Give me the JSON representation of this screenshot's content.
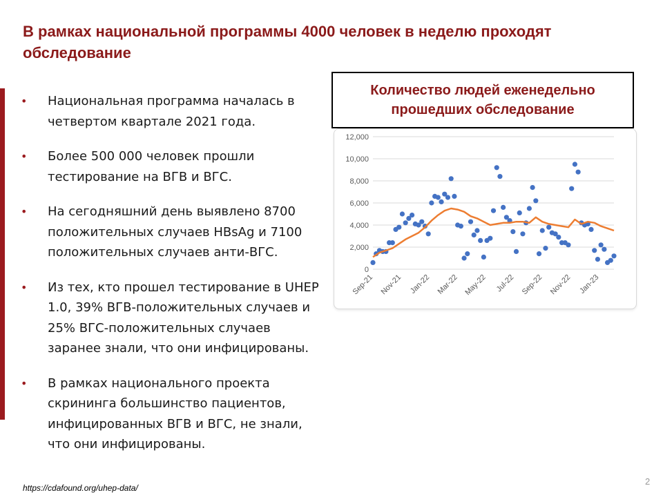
{
  "slide": {
    "title": "В рамках национальной программы 4000 человек в неделю проходят обследование",
    "bullets": [
      "Национальная программа началась в четвертом квартале 2021 года.",
      "Более 500 000 человек прошли тестирование на ВГВ и ВГС.",
      "На сегодняшний день выявлено 8700 положительных случаев HBsAg и 7100 положительных случаев анти-ВГС.",
      "Из тех, кто прошел тестирование в UHEP 1.0, 39% ВГВ-положительных случаев и 25% ВГС-положительных случаев заранее знали, что они инфицированы.",
      "В рамках национального проекта скрининга большинство пациентов, инфицированных ВГВ и ВГС, не знали, что они инфицированы."
    ],
    "bullet_marker": "•",
    "chart_title": "Количество людей еженедельно прошедших обследование",
    "source": "https://cdafound.org/uhep-data/",
    "page_number": "2",
    "colors": {
      "accent": "#9B1B1F",
      "title": "#8B1A1A",
      "points": "#4472C4",
      "trend": "#ED7D31"
    }
  },
  "chart_data": {
    "type": "scatter",
    "title": "Количество людей еженедельно прошедших обследование",
    "xlabel": "",
    "ylabel": "",
    "ylim": [
      0,
      12000
    ],
    "yticks": [
      0,
      2000,
      4000,
      6000,
      8000,
      10000,
      12000
    ],
    "ytick_labels": [
      "0",
      "2,000",
      "4,000",
      "6,000",
      "8,000",
      "10,000",
      "12,000"
    ],
    "xlim": [
      0,
      74
    ],
    "xtick_positions": [
      0,
      8.7,
      17.4,
      26,
      34.7,
      43.3,
      52,
      60.7,
      69.4
    ],
    "xtick_labels": [
      "Sep-21",
      "Nov-21",
      "Jan-22",
      "Mar-22",
      "May-22",
      "Jul-22",
      "Sep-22",
      "Nov-22",
      "Jan-23"
    ],
    "grid": true,
    "legend": "none",
    "series": [
      {
        "kind": "points",
        "x": [
          0,
          1,
          2,
          3,
          4,
          5,
          6,
          7,
          8,
          9,
          10,
          11,
          12,
          13,
          14,
          15,
          16,
          17,
          18,
          19,
          20,
          21,
          22,
          23,
          24,
          25,
          26,
          27,
          28,
          29,
          30,
          31,
          32,
          33,
          34,
          35,
          36,
          37,
          38,
          39,
          40,
          41,
          42,
          43,
          44,
          45,
          46,
          47,
          48,
          49,
          50,
          51,
          52,
          53,
          54,
          55,
          56,
          57,
          58,
          59,
          60,
          61,
          62,
          63,
          64,
          65,
          66,
          67,
          68,
          69,
          70,
          71,
          72,
          73,
          74
        ],
        "y": [
          600,
          1400,
          1700,
          1600,
          1600,
          2400,
          2400,
          3600,
          3800,
          5000,
          4200,
          4600,
          4900,
          4100,
          4000,
          4300,
          3900,
          3200,
          6000,
          6600,
          6500,
          6100,
          6800,
          6500,
          8200,
          6600,
          4000,
          3900,
          1000,
          1400,
          4300,
          3100,
          3500,
          2600,
          1100,
          2600,
          2800,
          5300,
          9200,
          8400,
          5600,
          4700,
          4400,
          3400,
          1600,
          5100,
          3200,
          4200,
          5500,
          7400,
          6200,
          1400,
          3500,
          1900,
          3800,
          3300,
          3200,
          2900,
          2400,
          2400,
          2200,
          7300,
          9500,
          8800,
          4200,
          4000,
          4100,
          3600,
          1700,
          900,
          2200,
          1800,
          600,
          800,
          1200
        ]
      },
      {
        "kind": "trend",
        "x": [
          0,
          2,
          4,
          6,
          8,
          10,
          12,
          14,
          16,
          18,
          20,
          22,
          24,
          26,
          28,
          30,
          32,
          34,
          36,
          38,
          40,
          42,
          44,
          46,
          48,
          50,
          52,
          54,
          56,
          58,
          60,
          62,
          64,
          66,
          68,
          70,
          72,
          74
        ],
        "y": [
          1100,
          1500,
          1700,
          1900,
          2300,
          2700,
          3000,
          3300,
          3800,
          4400,
          4900,
          5300,
          5500,
          5400,
          5200,
          4800,
          4600,
          4300,
          4000,
          4100,
          4200,
          4200,
          4300,
          4300,
          4200,
          4700,
          4300,
          4100,
          4000,
          3900,
          3800,
          4500,
          4100,
          4300,
          4200,
          3900,
          3700,
          3500
        ]
      }
    ]
  }
}
